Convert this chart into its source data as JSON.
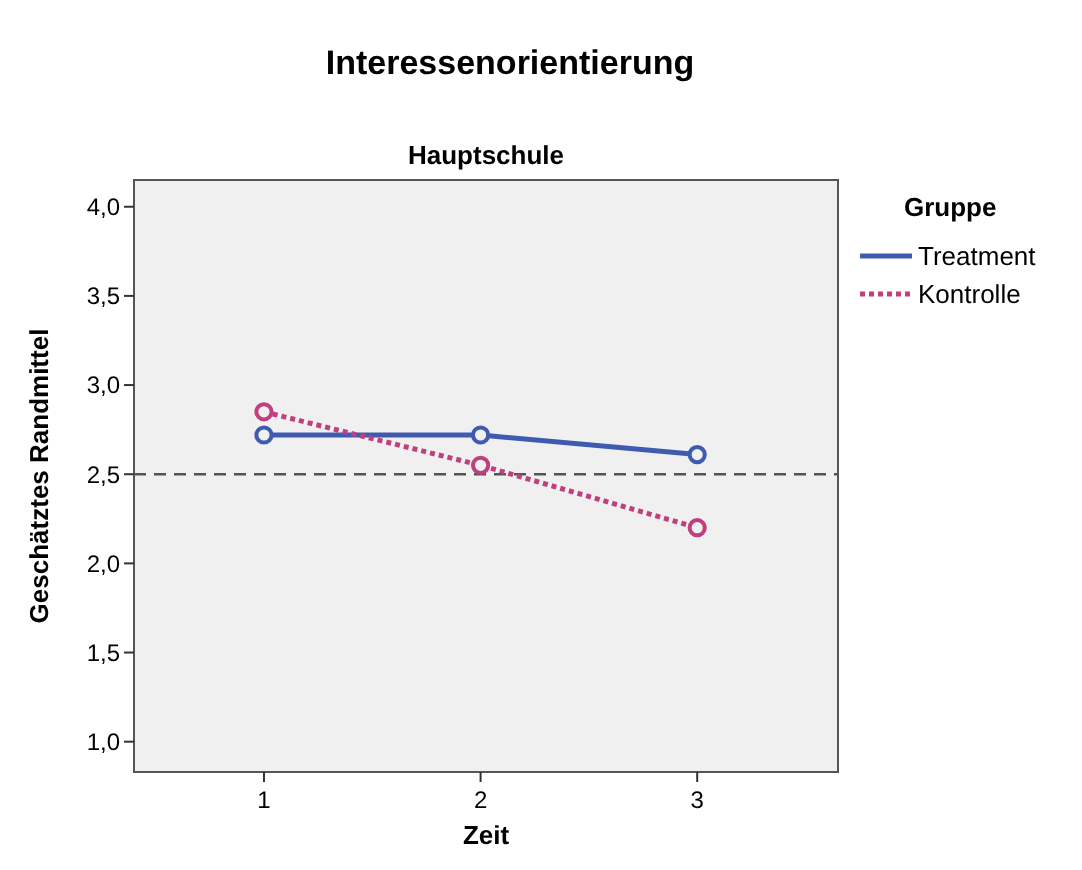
{
  "chart_data": {
    "type": "line",
    "title": "Interessenorientierung",
    "subtitle": "Hauptschule",
    "xlabel": "Zeit",
    "ylabel": "Geschätztes Randmittel",
    "legend_title": "Gruppe",
    "x": [
      1,
      2,
      3
    ],
    "xlim": [
      0.4,
      3.65
    ],
    "xticks": [
      1,
      2,
      3
    ],
    "ylim": [
      0.83,
      4.15
    ],
    "yticks": [
      {
        "value": 1,
        "label": "1,0"
      },
      {
        "value": 1.5,
        "label": "1,5"
      },
      {
        "value": 2,
        "label": "2,0"
      },
      {
        "value": 2.5,
        "label": "2,5"
      },
      {
        "value": 3,
        "label": "3,0"
      },
      {
        "value": 3.5,
        "label": "3,5"
      },
      {
        "value": 4,
        "label": "4,0"
      }
    ],
    "series": [
      {
        "name": "Treatment",
        "color": "#3f5bb0",
        "values": [
          2.72,
          2.72,
          2.61
        ],
        "line_style": "solid"
      },
      {
        "name": "Kontrolle",
        "color": "#c0407f",
        "values": [
          2.85,
          2.55,
          2.2
        ],
        "line_style": "dotted"
      }
    ],
    "ref_lines": [
      {
        "axis": "y",
        "value": 2.5,
        "color": "#555555",
        "line_style": "dashed"
      }
    ],
    "marker": "circle",
    "legend": "right",
    "grid": false
  }
}
